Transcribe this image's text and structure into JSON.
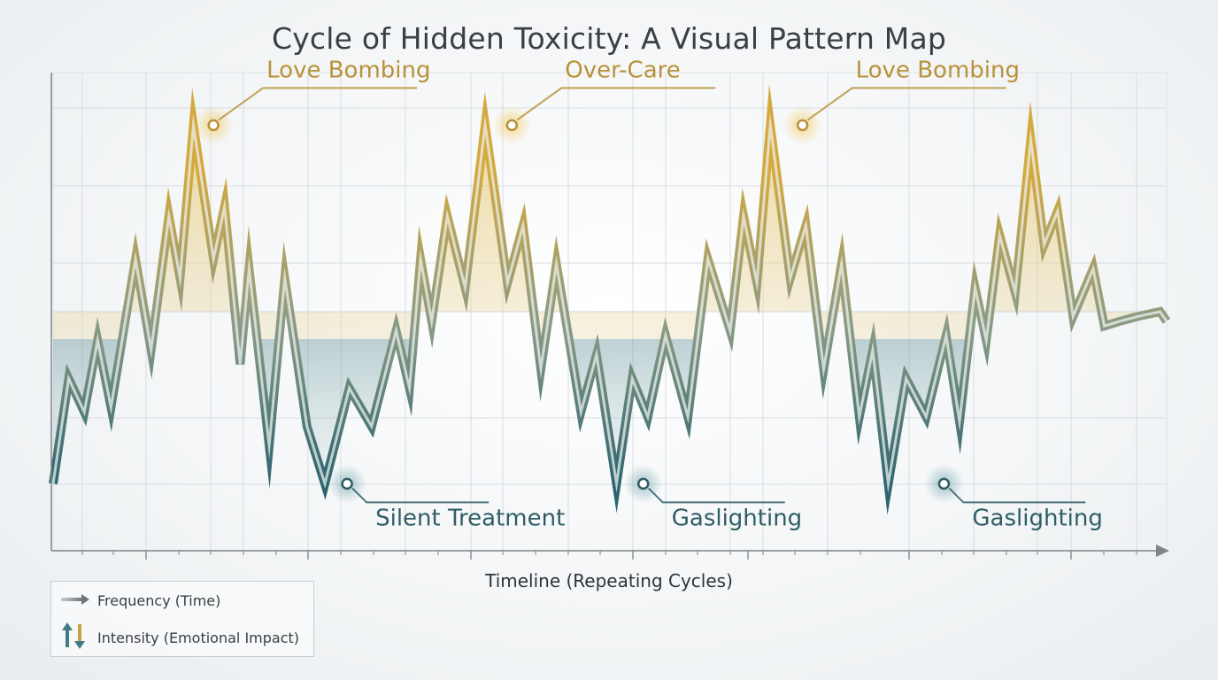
{
  "title": "Cycle of Hidden Toxicity: A Visual Pattern Map",
  "colors": {
    "gold": "#b8923a",
    "teal": "#2f5d66",
    "grid": "#d9dde0",
    "axis": "#7e8489"
  },
  "chart_data": {
    "type": "line",
    "title": "Cycle of Hidden Toxicity: A Visual Pattern Map",
    "xlabel": "Timeline (Repeating Cycles)",
    "ylabel": "",
    "xlim": [
      0,
      100
    ],
    "ylim": [
      -5,
      5
    ],
    "baseline": 0,
    "grid": true,
    "legend": "bottom-left",
    "series": [
      {
        "x": [
          0,
          1.4,
          2.8,
          4.0,
          5.2,
          7.4,
          8.8,
          10.4,
          11.4,
          12.6,
          14.4,
          15.4,
          16.8,
          17.6,
          19.4,
          20.8,
          22.8,
          24.4,
          26.6,
          28.6,
          30.8,
          32.0,
          33.0,
          34.0,
          35.4,
          37.0,
          38.8,
          40.8,
          42.2,
          43.8,
          45.2,
          47.4,
          48.8,
          50.6,
          52.0,
          53.4,
          55.0,
          57.0,
          58.8,
          60.8,
          62.0,
          63.2,
          64.4,
          66.2,
          67.6,
          69.2,
          70.8,
          72.4,
          73.6,
          75.0,
          76.6,
          78.4,
          80.2,
          81.4,
          82.8,
          83.8,
          85.0,
          86.4,
          87.8,
          89.0,
          90.2,
          91.6,
          93.4,
          94.4,
          95.8,
          97.4,
          99.4,
          100
        ],
        "values": [
          -3.6,
          -1.4,
          -2.1,
          -0.6,
          -2.0,
          1.1,
          -0.8,
          2.0,
          0.7,
          3.9,
          1.1,
          2.2,
          -1.1,
          0.9,
          -2.8,
          0.7,
          -2.4,
          -3.6,
          -1.6,
          -2.4,
          -0.4,
          -1.6,
          1.1,
          -0.2,
          2.0,
          0.5,
          3.9,
          0.6,
          1.8,
          -1.2,
          1.0,
          -2.1,
          -0.9,
          -3.6,
          -1.4,
          -2.2,
          -0.5,
          -2.2,
          1.1,
          -0.4,
          2.0,
          0.6,
          3.9,
          0.7,
          1.8,
          -1.2,
          1.0,
          -2.2,
          -0.8,
          -3.6,
          -1.4,
          -2.2,
          -0.5,
          -2.3,
          0.5,
          -0.6,
          1.6,
          0.4,
          3.6,
          1.4,
          2.1,
          -0.1,
          0.9,
          -0.3,
          -0.2,
          -0.1,
          0.0,
          -0.2
        ]
      }
    ],
    "annotations": [
      {
        "label": "Love Bombing",
        "x": 14.4,
        "y": 3.9,
        "kind": "peak"
      },
      {
        "label": "Over-Care",
        "x": 41.2,
        "y": 3.9,
        "kind": "peak"
      },
      {
        "label": "Love Bombing",
        "x": 67.3,
        "y": 3.9,
        "kind": "peak"
      },
      {
        "label": "Silent Treatment",
        "x": 26.4,
        "y": -3.6,
        "kind": "trough"
      },
      {
        "label": "Gaslighting",
        "x": 53.0,
        "y": -3.6,
        "kind": "trough"
      },
      {
        "label": "Gaslighting",
        "x": 80.0,
        "y": -3.6,
        "kind": "trough"
      }
    ]
  },
  "legend": {
    "items": [
      {
        "icon": "arrow-right-icon",
        "label": "Frequency (Time)"
      },
      {
        "icon": "up-down-arrows-icon",
        "label": "Intensity (Emotional Impact)"
      }
    ]
  }
}
